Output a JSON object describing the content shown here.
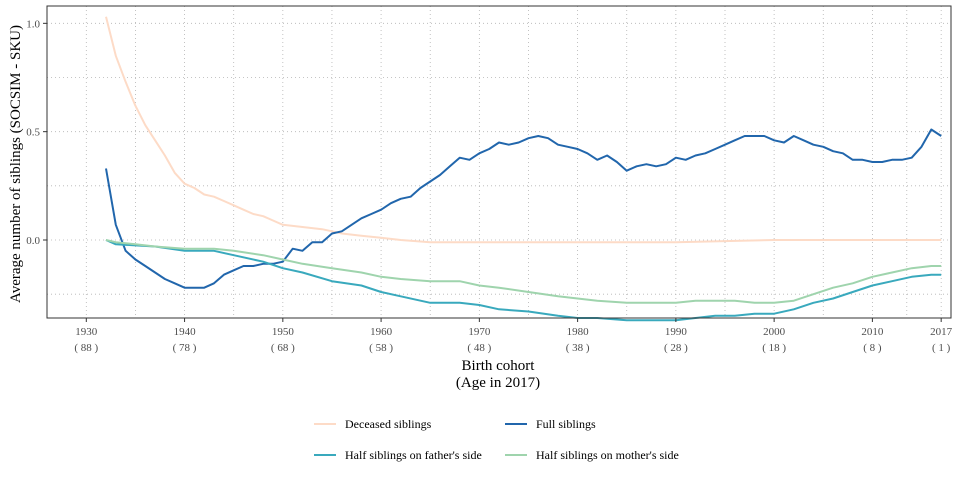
{
  "chart_data": {
    "type": "line",
    "xlabel": "Birth cohort",
    "xlabel_sub": "(Age in 2017)",
    "ylabel": "Average number of siblings (SOCSIM - SKU)",
    "xlim": [
      1926,
      2018
    ],
    "ylim": [
      -0.36,
      1.08
    ],
    "grid": true,
    "legend_position": "bottom",
    "x_ticks": [
      {
        "x": 1930,
        "label": "1930",
        "sub": "( 88 )"
      },
      {
        "x": 1940,
        "label": "1940",
        "sub": "( 78 )"
      },
      {
        "x": 1950,
        "label": "1950",
        "sub": "( 68 )"
      },
      {
        "x": 1960,
        "label": "1960",
        "sub": "( 58 )"
      },
      {
        "x": 1970,
        "label": "1970",
        "sub": "( 48 )"
      },
      {
        "x": 1980,
        "label": "1980",
        "sub": "( 38 )"
      },
      {
        "x": 1990,
        "label": "1990",
        "sub": "( 28 )"
      },
      {
        "x": 2000,
        "label": "2000",
        "sub": "( 18 )"
      },
      {
        "x": 2010,
        "label": "2010",
        "sub": "( 8 )"
      },
      {
        "x": 2017,
        "label": "2017",
        "sub": "( 1 )"
      }
    ],
    "y_ticks": [
      {
        "y": 0.0,
        "label": "0.0"
      },
      {
        "y": 0.5,
        "label": "0.5"
      },
      {
        "y": 1.0,
        "label": "1.0"
      }
    ],
    "series": [
      {
        "name": "Deceased siblings",
        "color": "#fddbc7",
        "points": [
          [
            1932,
            1.03
          ],
          [
            1933,
            0.85
          ],
          [
            1934,
            0.73
          ],
          [
            1935,
            0.62
          ],
          [
            1936,
            0.53
          ],
          [
            1937,
            0.46
          ],
          [
            1938,
            0.39
          ],
          [
            1939,
            0.31
          ],
          [
            1940,
            0.26
          ],
          [
            1941,
            0.24
          ],
          [
            1942,
            0.21
          ],
          [
            1943,
            0.2
          ],
          [
            1944,
            0.18
          ],
          [
            1945,
            0.16
          ],
          [
            1946,
            0.14
          ],
          [
            1947,
            0.12
          ],
          [
            1948,
            0.11
          ],
          [
            1949,
            0.09
          ],
          [
            1950,
            0.07
          ],
          [
            1951,
            0.065
          ],
          [
            1952,
            0.06
          ],
          [
            1953,
            0.055
          ],
          [
            1954,
            0.05
          ],
          [
            1955,
            0.04
          ],
          [
            1956,
            0.03
          ],
          [
            1958,
            0.02
          ],
          [
            1960,
            0.01
          ],
          [
            1962,
            0.0
          ],
          [
            1965,
            -0.01
          ],
          [
            1970,
            -0.01
          ],
          [
            1975,
            -0.01
          ],
          [
            1980,
            -0.01
          ],
          [
            1985,
            -0.01
          ],
          [
            1990,
            -0.01
          ],
          [
            1995,
            -0.005
          ],
          [
            2000,
            0.0
          ],
          [
            2005,
            0.0
          ],
          [
            2010,
            0.0
          ],
          [
            2017,
            0.0
          ]
        ]
      },
      {
        "name": "Full siblings",
        "color": "#2166ac",
        "points": [
          [
            1932,
            0.33
          ],
          [
            1933,
            0.07
          ],
          [
            1934,
            -0.05
          ],
          [
            1935,
            -0.09
          ],
          [
            1936,
            -0.12
          ],
          [
            1937,
            -0.15
          ],
          [
            1938,
            -0.18
          ],
          [
            1939,
            -0.2
          ],
          [
            1940,
            -0.22
          ],
          [
            1941,
            -0.22
          ],
          [
            1942,
            -0.22
          ],
          [
            1943,
            -0.2
          ],
          [
            1944,
            -0.16
          ],
          [
            1945,
            -0.14
          ],
          [
            1946,
            -0.12
          ],
          [
            1947,
            -0.12
          ],
          [
            1948,
            -0.11
          ],
          [
            1949,
            -0.11
          ],
          [
            1950,
            -0.1
          ],
          [
            1951,
            -0.04
          ],
          [
            1952,
            -0.05
          ],
          [
            1953,
            -0.01
          ],
          [
            1954,
            -0.01
          ],
          [
            1955,
            0.03
          ],
          [
            1956,
            0.04
          ],
          [
            1957,
            0.07
          ],
          [
            1958,
            0.1
          ],
          [
            1959,
            0.12
          ],
          [
            1960,
            0.14
          ],
          [
            1961,
            0.17
          ],
          [
            1962,
            0.19
          ],
          [
            1963,
            0.2
          ],
          [
            1964,
            0.24
          ],
          [
            1965,
            0.27
          ],
          [
            1966,
            0.3
          ],
          [
            1967,
            0.34
          ],
          [
            1968,
            0.38
          ],
          [
            1969,
            0.37
          ],
          [
            1970,
            0.4
          ],
          [
            1971,
            0.42
          ],
          [
            1972,
            0.45
          ],
          [
            1973,
            0.44
          ],
          [
            1974,
            0.45
          ],
          [
            1975,
            0.47
          ],
          [
            1976,
            0.48
          ],
          [
            1977,
            0.47
          ],
          [
            1978,
            0.44
          ],
          [
            1979,
            0.43
          ],
          [
            1980,
            0.42
          ],
          [
            1981,
            0.4
          ],
          [
            1982,
            0.37
          ],
          [
            1983,
            0.39
          ],
          [
            1984,
            0.36
          ],
          [
            1985,
            0.32
          ],
          [
            1986,
            0.34
          ],
          [
            1987,
            0.35
          ],
          [
            1988,
            0.34
          ],
          [
            1989,
            0.35
          ],
          [
            1990,
            0.38
          ],
          [
            1991,
            0.37
          ],
          [
            1992,
            0.39
          ],
          [
            1993,
            0.4
          ],
          [
            1994,
            0.42
          ],
          [
            1995,
            0.44
          ],
          [
            1996,
            0.46
          ],
          [
            1997,
            0.48
          ],
          [
            1998,
            0.48
          ],
          [
            1999,
            0.48
          ],
          [
            2000,
            0.46
          ],
          [
            2001,
            0.45
          ],
          [
            2002,
            0.48
          ],
          [
            2003,
            0.46
          ],
          [
            2004,
            0.44
          ],
          [
            2005,
            0.43
          ],
          [
            2006,
            0.41
          ],
          [
            2007,
            0.4
          ],
          [
            2008,
            0.37
          ],
          [
            2009,
            0.37
          ],
          [
            2010,
            0.36
          ],
          [
            2011,
            0.36
          ],
          [
            2012,
            0.37
          ],
          [
            2013,
            0.37
          ],
          [
            2014,
            0.38
          ],
          [
            2015,
            0.43
          ],
          [
            2016,
            0.51
          ],
          [
            2017,
            0.48
          ]
        ]
      },
      {
        "name": "Half siblings on father's side",
        "color": "#39a9bd",
        "points": [
          [
            1932,
            0.0
          ],
          [
            1933,
            -0.02
          ],
          [
            1935,
            -0.025
          ],
          [
            1937,
            -0.03
          ],
          [
            1940,
            -0.05
          ],
          [
            1943,
            -0.05
          ],
          [
            1945,
            -0.07
          ],
          [
            1948,
            -0.1
          ],
          [
            1950,
            -0.13
          ],
          [
            1952,
            -0.15
          ],
          [
            1955,
            -0.19
          ],
          [
            1958,
            -0.21
          ],
          [
            1960,
            -0.24
          ],
          [
            1962,
            -0.26
          ],
          [
            1965,
            -0.29
          ],
          [
            1968,
            -0.29
          ],
          [
            1970,
            -0.3
          ],
          [
            1972,
            -0.32
          ],
          [
            1975,
            -0.33
          ],
          [
            1978,
            -0.35
          ],
          [
            1980,
            -0.36
          ],
          [
            1982,
            -0.36
          ],
          [
            1985,
            -0.37
          ],
          [
            1988,
            -0.37
          ],
          [
            1990,
            -0.37
          ],
          [
            1992,
            -0.36
          ],
          [
            1994,
            -0.35
          ],
          [
            1996,
            -0.35
          ],
          [
            1998,
            -0.34
          ],
          [
            2000,
            -0.34
          ],
          [
            2002,
            -0.32
          ],
          [
            2004,
            -0.29
          ],
          [
            2006,
            -0.27
          ],
          [
            2008,
            -0.24
          ],
          [
            2010,
            -0.21
          ],
          [
            2012,
            -0.19
          ],
          [
            2014,
            -0.17
          ],
          [
            2016,
            -0.16
          ],
          [
            2017,
            -0.16
          ]
        ]
      },
      {
        "name": "Half siblings on mother's side",
        "color": "#9fd4ad",
        "points": [
          [
            1932,
            0.0
          ],
          [
            1933,
            -0.01
          ],
          [
            1935,
            -0.02
          ],
          [
            1937,
            -0.03
          ],
          [
            1940,
            -0.04
          ],
          [
            1943,
            -0.04
          ],
          [
            1945,
            -0.05
          ],
          [
            1948,
            -0.07
          ],
          [
            1950,
            -0.09
          ],
          [
            1952,
            -0.11
          ],
          [
            1955,
            -0.13
          ],
          [
            1958,
            -0.15
          ],
          [
            1960,
            -0.17
          ],
          [
            1962,
            -0.18
          ],
          [
            1965,
            -0.19
          ],
          [
            1968,
            -0.19
          ],
          [
            1970,
            -0.21
          ],
          [
            1972,
            -0.22
          ],
          [
            1975,
            -0.24
          ],
          [
            1978,
            -0.26
          ],
          [
            1980,
            -0.27
          ],
          [
            1982,
            -0.28
          ],
          [
            1985,
            -0.29
          ],
          [
            1988,
            -0.29
          ],
          [
            1990,
            -0.29
          ],
          [
            1992,
            -0.28
          ],
          [
            1994,
            -0.28
          ],
          [
            1996,
            -0.28
          ],
          [
            1998,
            -0.29
          ],
          [
            2000,
            -0.29
          ],
          [
            2002,
            -0.28
          ],
          [
            2004,
            -0.25
          ],
          [
            2006,
            -0.22
          ],
          [
            2008,
            -0.2
          ],
          [
            2010,
            -0.17
          ],
          [
            2012,
            -0.15
          ],
          [
            2014,
            -0.13
          ],
          [
            2016,
            -0.12
          ],
          [
            2017,
            -0.12
          ]
        ]
      }
    ],
    "legend": [
      {
        "label": "Deceased siblings",
        "color": "#fddbc7"
      },
      {
        "label": "Full siblings",
        "color": "#2166ac"
      },
      {
        "label": "Half siblings on father's side",
        "color": "#39a9bd"
      },
      {
        "label": "Half siblings on mother's side",
        "color": "#9fd4ad"
      }
    ]
  }
}
